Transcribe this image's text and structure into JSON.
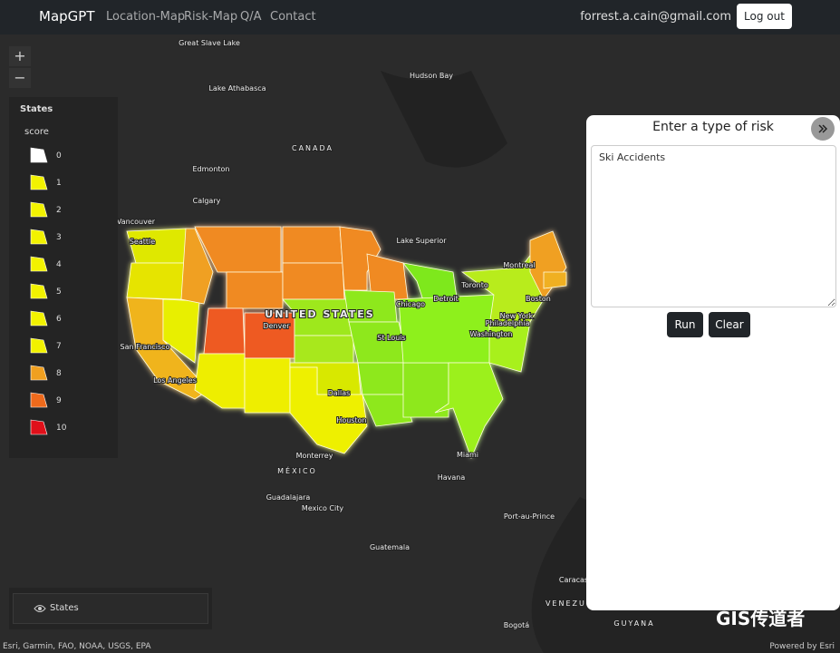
{
  "navbar": {
    "brand": "MapGPT",
    "links": [
      "Location-Map",
      "Risk-Map",
      "Q/A",
      "Contact"
    ],
    "user": "forrest.a.cain@gmail.com",
    "logout": "Log out"
  },
  "zoom": {
    "in": "+",
    "out": "−"
  },
  "legend": {
    "layer": "States",
    "field": "score",
    "items": [
      {
        "label": 0,
        "color": "#ffffff"
      },
      {
        "label": 1,
        "color": "#f2f200"
      },
      {
        "label": 2,
        "color": "#f2f200"
      },
      {
        "label": 3,
        "color": "#f2f200"
      },
      {
        "label": 4,
        "color": "#f2f200"
      },
      {
        "label": 5,
        "color": "#f2f200"
      },
      {
        "label": 6,
        "color": "#f2f200"
      },
      {
        "label": 7,
        "color": "#f2f200"
      },
      {
        "label": 8,
        "color": "#f0a020"
      },
      {
        "label": 9,
        "color": "#ee6a1c"
      },
      {
        "label": 10,
        "color": "#e0101a"
      }
    ]
  },
  "map_labels": [
    "Great Slave Lake",
    "Lake Athabasca",
    "Hudson Bay",
    "CANADA",
    "Edmonton",
    "Calgary",
    "Vancouver",
    "Seattle",
    "Lake Superior",
    "Montreal",
    "Toronto",
    "Boston",
    "Detroit",
    "Chicago",
    "New York",
    "Philadelphia",
    "Washington",
    "St Louis",
    "Denver",
    "UNITED STATES",
    "San Francisco",
    "Los Angeles",
    "Dallas",
    "Houston",
    "Monterrey",
    "MÉXICO",
    "Miami",
    "Havana",
    "Guadalajara",
    "Mexico City",
    "Port-au-Prince",
    "Guatemala",
    "Caracas",
    "VENEZUELA",
    "GUYANA",
    "Bogotá"
  ],
  "panel": {
    "title": "Enter a type of risk",
    "input": "Ski Accidents",
    "buttons": [
      "Run",
      "Clear"
    ]
  },
  "layer_list": {
    "item": "States"
  },
  "attribution": {
    "left": "Esri, Garmin, FAO, NOAA, USGS, EPA",
    "right": "Powered by Esri"
  },
  "watermark": "GIS传道者"
}
